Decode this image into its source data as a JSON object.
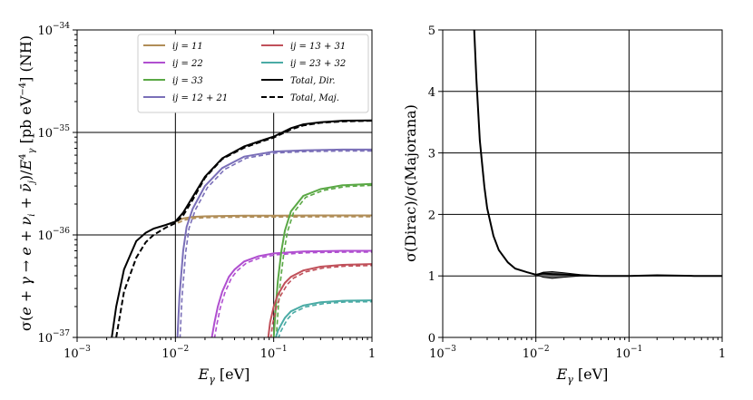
{
  "chart_data": [
    {
      "type": "line",
      "title": "",
      "xlabel": "E_γ [eV]",
      "ylabel": "σ(e + γ → e + ν_i + ν̄_j)/E_γ^4 [pb eV^-4] (NH)",
      "xscale": "log",
      "yscale": "log",
      "xlim": [
        0.001,
        1
      ],
      "ylim": [
        1e-37,
        1e-34
      ],
      "grid": true,
      "legend_position": "top-right",
      "x_ticks": [
        "10^-3",
        "10^-2",
        "10^-1",
        "1"
      ],
      "y_ticks": [
        "10^-37",
        "10^-36",
        "10^-35",
        "10^-34"
      ],
      "series": [
        {
          "name": "ij = 11",
          "color": "#b08d57",
          "style": "solid",
          "x": [
            0.01,
            0.012,
            0.015,
            0.02,
            0.03,
            0.05,
            0.1,
            0.3,
            1
          ],
          "y": [
            1.35e-36,
            1.45e-36,
            1.5e-36,
            1.52e-36,
            1.53e-36,
            1.54e-36,
            1.54e-36,
            1.55e-36,
            1.55e-36
          ]
        },
        {
          "name": "ij = 22",
          "color": "#b04fd0",
          "style": "solid",
          "x": [
            0.0235,
            0.025,
            0.027,
            0.03,
            0.035,
            0.04,
            0.05,
            0.07,
            0.1,
            0.2,
            0.5,
            1
          ],
          "y": [
            1e-37,
            1.4e-37,
            2e-37,
            2.8e-37,
            3.9e-37,
            4.6e-37,
            5.5e-37,
            6.2e-37,
            6.6e-37,
            6.9e-37,
            7e-37,
            7e-37
          ]
        },
        {
          "name": "ij = 33",
          "color": "#5aa845",
          "style": "solid",
          "x": [
            0.1,
            0.105,
            0.11,
            0.12,
            0.13,
            0.15,
            0.2,
            0.3,
            0.5,
            1
          ],
          "y": [
            1e-37,
            2e-37,
            3.5e-37,
            7e-37,
            1.1e-36,
            1.7e-36,
            2.4e-36,
            2.8e-36,
            3.05e-36,
            3.15e-36
          ]
        },
        {
          "name": "ij = 12 + 21",
          "color": "#7a6fb8",
          "style": "solid",
          "x": [
            0.0105,
            0.011,
            0.012,
            0.013,
            0.015,
            0.02,
            0.03,
            0.05,
            0.1,
            0.2,
            0.5,
            1
          ],
          "y": [
            1e-37,
            2.5e-37,
            7e-37,
            1.2e-36,
            1.8e-36,
            3e-36,
            4.5e-36,
            5.8e-36,
            6.5e-36,
            6.7e-36,
            6.8e-36,
            6.8e-36
          ]
        },
        {
          "name": "ij = 13 + 31",
          "color": "#c0505a",
          "style": "solid",
          "x": [
            0.088,
            0.092,
            0.1,
            0.11,
            0.13,
            0.15,
            0.2,
            0.3,
            0.5,
            1
          ],
          "y": [
            1e-37,
            1.4e-37,
            2e-37,
            2.6e-37,
            3.4e-37,
            3.9e-37,
            4.5e-37,
            4.9e-37,
            5.1e-37,
            5.2e-37
          ]
        },
        {
          "name": "ij = 23 + 32",
          "color": "#4aaba5",
          "style": "solid",
          "x": [
            0.105,
            0.11,
            0.12,
            0.13,
            0.15,
            0.2,
            0.3,
            0.5,
            1
          ],
          "y": [
            1e-37,
            1.15e-37,
            1.35e-37,
            1.55e-37,
            1.8e-37,
            2.05e-37,
            2.2e-37,
            2.28e-37,
            2.3e-37
          ]
        },
        {
          "name": "Total, Dir.",
          "color": "#000000",
          "style": "solid",
          "x": [
            0.00225,
            0.0025,
            0.003,
            0.004,
            0.005,
            0.006,
            0.008,
            0.01,
            0.012,
            0.015,
            0.02,
            0.03,
            0.05,
            0.08,
            0.1,
            0.15,
            0.2,
            0.3,
            0.5,
            1
          ],
          "y": [
            1e-37,
            2e-37,
            4.6e-37,
            8.7e-37,
            1.05e-36,
            1.15e-36,
            1.25e-36,
            1.35e-36,
            1.65e-36,
            2.35e-36,
            3.7e-36,
            5.6e-36,
            7.3e-36,
            8.5e-36,
            9.1e-36,
            1.1e-35,
            1.2e-35,
            1.26e-35,
            1.3e-35,
            1.31e-35
          ]
        },
        {
          "name": "Total, Maj.",
          "color": "#000000",
          "style": "dashed",
          "x": [
            0.0025,
            0.003,
            0.004,
            0.005,
            0.006,
            0.008,
            0.01,
            0.012,
            0.015,
            0.02,
            0.03,
            0.05,
            0.08,
            0.1,
            0.15,
            0.2,
            0.3,
            0.5,
            1
          ],
          "y": [
            1e-37,
            2.8e-37,
            6e-37,
            8.5e-37,
            1e-36,
            1.18e-36,
            1.3e-36,
            1.55e-36,
            2.2e-36,
            3.6e-36,
            5.5e-36,
            7.1e-36,
            8.3e-36,
            8.9e-36,
            1.07e-35,
            1.17e-35,
            1.24e-35,
            1.28e-35,
            1.3e-35
          ]
        }
      ]
    },
    {
      "type": "line",
      "title": "",
      "xlabel": "E_γ [eV]",
      "ylabel": "σ(Dirac)/σ(Majorana)",
      "xscale": "log",
      "yscale": "linear",
      "xlim": [
        0.001,
        1
      ],
      "ylim": [
        0,
        5
      ],
      "grid": true,
      "x_ticks": [
        "10^-3",
        "10^-2",
        "10^-1",
        "1"
      ],
      "y_ticks": [
        "0",
        "1",
        "2",
        "3",
        "4",
        "5"
      ],
      "series": [
        {
          "name": "ratio",
          "color": "#000000",
          "style": "solid",
          "x": [
            0.00218,
            0.0023,
            0.0025,
            0.0028,
            0.003,
            0.0035,
            0.004,
            0.005,
            0.006,
            0.008,
            0.01,
            0.012,
            0.015,
            0.02,
            0.03,
            0.05,
            0.1,
            0.2,
            0.5,
            1
          ],
          "y": [
            5.0,
            4.2,
            3.2,
            2.45,
            2.1,
            1.65,
            1.42,
            1.22,
            1.12,
            1.06,
            1.02,
            1.04,
            1.03,
            1.02,
            1.01,
            1.0,
            1.0,
            1.01,
            1.0,
            1.0
          ]
        },
        {
          "name": "band_upper",
          "color": "#000000",
          "style": "band",
          "x": [
            0.01,
            0.012,
            0.015,
            0.02,
            0.03,
            0.05
          ],
          "y": [
            1.02,
            1.06,
            1.07,
            1.05,
            1.02,
            1.0
          ]
        },
        {
          "name": "band_lower",
          "color": "#000000",
          "style": "band",
          "x": [
            0.01,
            0.012,
            0.015,
            0.02,
            0.03,
            0.05
          ],
          "y": [
            1.02,
            0.98,
            0.96,
            0.98,
            1.0,
            1.0
          ]
        }
      ]
    }
  ]
}
